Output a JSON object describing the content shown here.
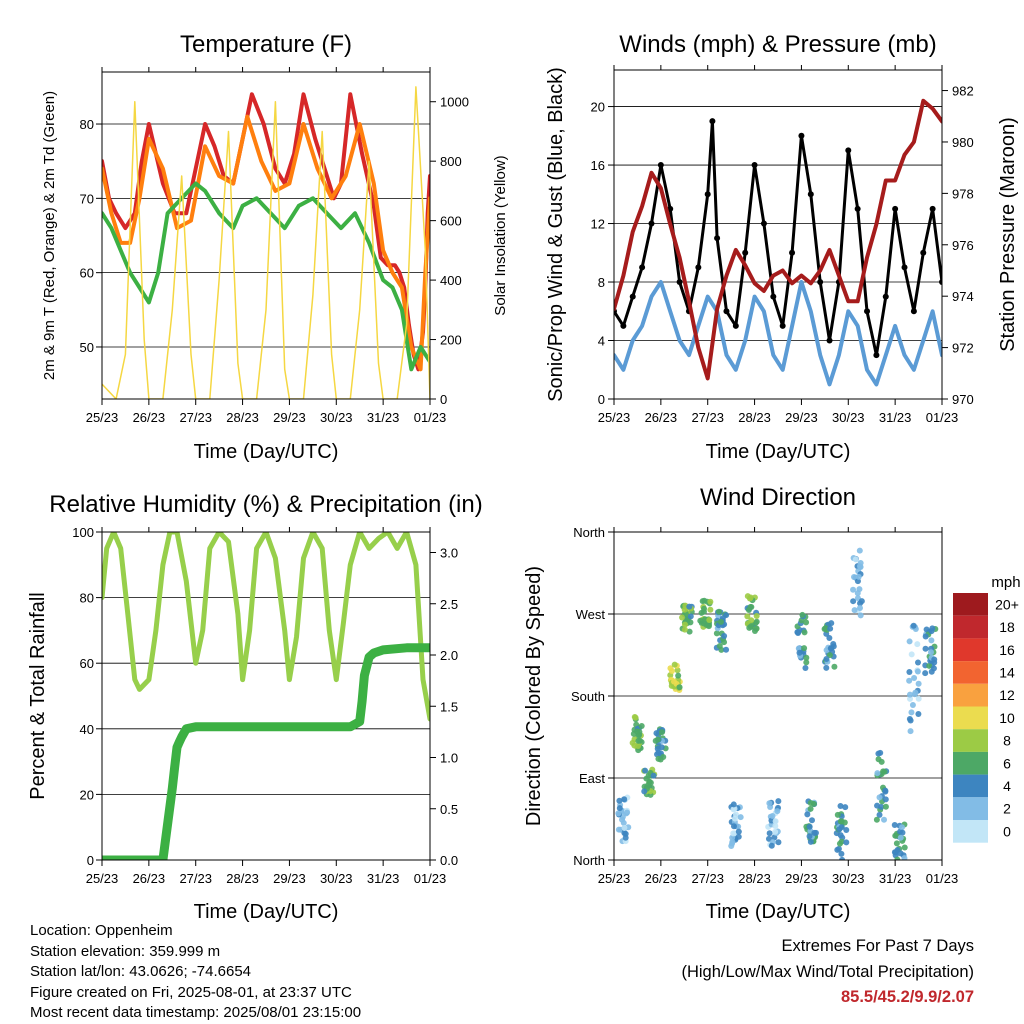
{
  "chart_data": [
    {
      "type": "line",
      "title": "Temperature (F)",
      "xlabel": "Time (Day/UTC)",
      "ylabel": "2m & 9m T (Red, Orange) & 2m Td (Green)",
      "y2label": "Solar Insolation (Yellow)",
      "x_ticks": [
        "25/23",
        "26/23",
        "27/23",
        "28/23",
        "29/23",
        "30/23",
        "31/23",
        "01/23"
      ],
      "xlim": [
        0,
        7
      ],
      "ylim": [
        43,
        87
      ],
      "y_ticks": [
        50,
        60,
        70,
        80
      ],
      "y2lim": [
        0,
        1100
      ],
      "y2_ticks": [
        0,
        200,
        400,
        600,
        800,
        1000
      ],
      "grid": true,
      "series": [
        {
          "color": "#d62728",
          "x": [
            0,
            0.15,
            0.3,
            0.5,
            0.7,
            0.85,
            1.0,
            1.15,
            1.3,
            1.55,
            1.8,
            2.0,
            2.2,
            2.4,
            2.6,
            2.8,
            3.0,
            3.2,
            3.45,
            3.7,
            3.9,
            4.1,
            4.3,
            4.55,
            4.8,
            4.95,
            5.1,
            5.3,
            5.55,
            5.8,
            5.95,
            6.1,
            6.25,
            6.35,
            6.45,
            6.55,
            6.65,
            6.75,
            6.85,
            6.9,
            6.95,
            7.0
          ],
          "values": [
            75,
            70,
            68,
            66,
            68,
            75,
            80,
            76,
            72,
            68,
            68,
            74,
            80,
            77,
            73,
            72,
            78,
            84,
            80,
            74,
            72,
            76,
            84,
            78,
            73,
            70,
            72,
            84,
            76,
            69,
            62,
            61,
            61,
            60,
            58,
            53,
            49,
            47,
            52,
            58,
            68,
            73
          ]
        },
        {
          "color": "#ff7f0e",
          "x": [
            0,
            0.2,
            0.4,
            0.6,
            0.8,
            1.0,
            1.3,
            1.6,
            1.9,
            2.2,
            2.5,
            2.8,
            3.1,
            3.4,
            3.7,
            4.0,
            4.3,
            4.6,
            4.9,
            5.2,
            5.5,
            5.8,
            6.0,
            6.2,
            6.4,
            6.6,
            6.8,
            6.9,
            7.0
          ],
          "values": [
            74,
            68,
            64,
            64,
            70,
            78,
            74,
            66,
            67,
            77,
            73,
            72,
            81,
            75,
            71,
            72,
            80,
            74,
            70,
            73,
            80,
            72,
            63,
            60,
            58,
            50,
            47,
            60,
            70
          ]
        },
        {
          "color": "#3cb043",
          "x": [
            0,
            0.2,
            0.4,
            0.6,
            0.8,
            1.0,
            1.2,
            1.4,
            1.7,
            2.0,
            2.2,
            2.5,
            2.8,
            3.0,
            3.3,
            3.6,
            3.9,
            4.2,
            4.5,
            4.8,
            5.1,
            5.4,
            5.7,
            6.0,
            6.2,
            6.4,
            6.6,
            6.8,
            7.0
          ],
          "values": [
            68,
            66,
            63,
            60,
            58,
            56,
            60,
            68,
            70,
            72,
            71,
            68,
            66,
            69,
            70,
            68,
            66,
            69,
            70,
            68,
            66,
            68,
            64,
            59,
            58,
            55,
            47,
            50,
            48
          ]
        },
        {
          "color": "#f5d742",
          "x": [
            0,
            0.3,
            0.5,
            0.7,
            0.9,
            1.0,
            1.3,
            1.5,
            1.7,
            1.9,
            2.0,
            2.3,
            2.5,
            2.7,
            2.9,
            3.0,
            3.3,
            3.5,
            3.7,
            3.9,
            4.0,
            4.3,
            4.5,
            4.7,
            4.9,
            5.0,
            5.3,
            5.5,
            5.7,
            5.9,
            6.0,
            6.3,
            6.5,
            6.7,
            6.9,
            7.0
          ],
          "values": [
            50,
            0,
            150,
            1000,
            200,
            0,
            0,
            300,
            750,
            150,
            0,
            0,
            400,
            900,
            120,
            0,
            0,
            300,
            1000,
            100,
            0,
            0,
            350,
            900,
            150,
            0,
            0,
            300,
            800,
            120,
            0,
            0,
            250,
            1050,
            500,
            0
          ],
          "axis": "y2"
        }
      ]
    },
    {
      "type": "line",
      "title": "Winds (mph) & Pressure (mb)",
      "xlabel": "Time (Day/UTC)",
      "ylabel": "Sonic/Prop Wind & Gust (Blue, Black)",
      "y2label": "Station Pressure (Maroon)",
      "x_ticks": [
        "25/23",
        "26/23",
        "27/23",
        "28/23",
        "29/23",
        "30/23",
        "31/23",
        "01/23"
      ],
      "xlim": [
        0,
        7
      ],
      "ylim": [
        0,
        22.5
      ],
      "y_ticks": [
        0,
        4,
        8,
        12,
        16,
        20
      ],
      "y2lim": [
        970,
        982.8
      ],
      "y2_ticks": [
        970,
        972,
        974,
        976,
        978,
        980,
        982
      ],
      "grid": true,
      "series": [
        {
          "color": "#5b9bd5",
          "x": [
            0,
            0.2,
            0.4,
            0.6,
            0.8,
            1.0,
            1.2,
            1.4,
            1.6,
            1.8,
            2.0,
            2.2,
            2.4,
            2.6,
            2.8,
            3.0,
            3.2,
            3.4,
            3.6,
            3.8,
            4.0,
            4.2,
            4.4,
            4.6,
            4.8,
            5.0,
            5.2,
            5.4,
            5.6,
            5.8,
            6.0,
            6.2,
            6.4,
            6.6,
            6.8,
            7.0
          ],
          "values": [
            3,
            2,
            4,
            5,
            7,
            8,
            6,
            4,
            3,
            5,
            7,
            6,
            3,
            2,
            4,
            7,
            6,
            3,
            2,
            5,
            8,
            6,
            3,
            1,
            3,
            6,
            5,
            2,
            1,
            3,
            5,
            3,
            2,
            4,
            6,
            3
          ]
        },
        {
          "color": "#000000",
          "x": [
            0,
            0.2,
            0.4,
            0.6,
            0.8,
            1.0,
            1.2,
            1.4,
            1.6,
            1.8,
            2.0,
            2.1,
            2.2,
            2.4,
            2.6,
            2.8,
            3.0,
            3.2,
            3.4,
            3.6,
            3.8,
            4.0,
            4.2,
            4.4,
            4.6,
            4.8,
            5.0,
            5.2,
            5.4,
            5.6,
            5.8,
            6.0,
            6.2,
            6.4,
            6.6,
            6.8,
            7.0
          ],
          "values": [
            6,
            5,
            7,
            9,
            12,
            16,
            13,
            8,
            6,
            9,
            14,
            19,
            11,
            6,
            5,
            10,
            16,
            12,
            7,
            5,
            10,
            18,
            14,
            8,
            4,
            8,
            17,
            13,
            6,
            3,
            7,
            13,
            9,
            6,
            10,
            13,
            8
          ]
        },
        {
          "color": "#a61c1c",
          "x": [
            0,
            0.2,
            0.4,
            0.6,
            0.8,
            1.0,
            1.2,
            1.4,
            1.6,
            1.8,
            2.0,
            2.2,
            2.4,
            2.6,
            2.8,
            3.0,
            3.2,
            3.4,
            3.6,
            3.8,
            4.0,
            4.2,
            4.4,
            4.6,
            4.8,
            5.0,
            5.2,
            5.4,
            5.6,
            5.8,
            6.0,
            6.2,
            6.4,
            6.6,
            6.8,
            7.0
          ],
          "values": [
            973.5,
            974.8,
            976.5,
            977.5,
            978.8,
            978.2,
            976.8,
            975.5,
            973.8,
            972.0,
            970.8,
            973.5,
            974.8,
            975.8,
            975.2,
            974.5,
            974.2,
            974.8,
            975.0,
            974.5,
            974.8,
            974.5,
            975.0,
            975.8,
            974.8,
            973.8,
            973.8,
            975.5,
            976.8,
            978.5,
            978.5,
            979.5,
            980.0,
            981.6,
            981.3,
            980.8
          ],
          "axis": "y2"
        }
      ]
    },
    {
      "type": "line",
      "title": "Relative Humidity (%) & Precipitation (in)",
      "xlabel": "Time (Day/UTC)",
      "ylabel": "Percent & Total Rainfall",
      "x_ticks": [
        "25/23",
        "26/23",
        "27/23",
        "28/23",
        "29/23",
        "30/23",
        "31/23",
        "01/23"
      ],
      "xlim": [
        0,
        7
      ],
      "ylim": [
        0,
        100
      ],
      "y_ticks": [
        0,
        20,
        40,
        60,
        80,
        100
      ],
      "y2lim": [
        0,
        3.2
      ],
      "y2_ticks": [
        0.0,
        0.5,
        1.0,
        1.5,
        2.0,
        2.5,
        3.0
      ],
      "grid": true,
      "series": [
        {
          "color": "#97cf4b",
          "x": [
            0,
            0.1,
            0.25,
            0.4,
            0.55,
            0.7,
            0.8,
            1.0,
            1.15,
            1.3,
            1.45,
            1.6,
            1.8,
            2.0,
            2.15,
            2.3,
            2.5,
            2.7,
            2.9,
            3.0,
            3.15,
            3.3,
            3.5,
            3.7,
            3.9,
            4.0,
            4.15,
            4.3,
            4.5,
            4.7,
            4.85,
            5.0,
            5.15,
            5.3,
            5.5,
            5.7,
            5.9,
            6.1,
            6.3,
            6.5,
            6.7,
            6.85,
            7.0
          ],
          "values": [
            80,
            95,
            100,
            95,
            75,
            55,
            52,
            55,
            70,
            90,
            100,
            100,
            85,
            60,
            70,
            95,
            100,
            97,
            75,
            55,
            70,
            95,
            100,
            92,
            70,
            55,
            68,
            92,
            100,
            95,
            70,
            55,
            72,
            90,
            100,
            95,
            98,
            100,
            95,
            100,
            90,
            55,
            43
          ]
        },
        {
          "color": "#3cb043",
          "x": [
            0,
            0.5,
            1.0,
            1.3,
            1.4,
            1.5,
            1.55,
            1.6,
            1.65,
            1.7,
            1.8,
            2.0,
            2.5,
            3.0,
            3.5,
            4.0,
            4.5,
            5.0,
            5.3,
            5.5,
            5.55,
            5.6,
            5.7,
            5.8,
            6.0,
            6.5,
            7.0
          ],
          "values": [
            0,
            0,
            0,
            0,
            0.35,
            0.7,
            0.9,
            1.1,
            1.15,
            1.2,
            1.28,
            1.3,
            1.3,
            1.3,
            1.3,
            1.3,
            1.3,
            1.3,
            1.3,
            1.35,
            1.55,
            1.8,
            1.98,
            2.02,
            2.05,
            2.07,
            2.07
          ],
          "axis": "y2"
        }
      ]
    },
    {
      "type": "scatter",
      "title": "Wind Direction",
      "xlabel": "Time (Day/UTC)",
      "ylabel": "Direction (Colored By Speed)",
      "x_ticks": [
        "25/23",
        "26/23",
        "27/23",
        "28/23",
        "29/23",
        "30/23",
        "31/23",
        "01/23"
      ],
      "xlim": [
        0,
        7
      ],
      "ylim": [
        0,
        360
      ],
      "y_ticks": [
        0,
        90,
        180,
        270,
        360
      ],
      "y_tick_labels": [
        "North",
        "East",
        "South",
        "West",
        "North"
      ],
      "grid": true,
      "legend": {
        "title": "mph",
        "labels": [
          "20+",
          "18",
          "16",
          "14",
          "12",
          "10",
          "8",
          "6",
          "4",
          "2",
          "0"
        ],
        "colors": [
          "#9e1a1e",
          "#c0282d",
          "#e0382c",
          "#f26430",
          "#f9a13f",
          "#ebdc4f",
          "#9ccb45",
          "#4da866",
          "#3d85c0",
          "#82bce6",
          "#c2e6f7"
        ]
      },
      "clusters": [
        {
          "x": 0.2,
          "y": 45,
          "spread_y": 25,
          "speed": 2
        },
        {
          "x": 0.5,
          "y": 140,
          "spread_y": 20,
          "speed": 6
        },
        {
          "x": 0.75,
          "y": 85,
          "spread_y": 15,
          "speed": 6
        },
        {
          "x": 1.0,
          "y": 125,
          "spread_y": 20,
          "speed": 4
        },
        {
          "x": 1.3,
          "y": 200,
          "spread_y": 15,
          "speed": 8
        },
        {
          "x": 1.55,
          "y": 265,
          "spread_y": 15,
          "speed": 6
        },
        {
          "x": 1.95,
          "y": 270,
          "spread_y": 15,
          "speed": 6
        },
        {
          "x": 2.3,
          "y": 250,
          "spread_y": 25,
          "speed": 4
        },
        {
          "x": 2.6,
          "y": 40,
          "spread_y": 25,
          "speed": 2
        },
        {
          "x": 2.95,
          "y": 270,
          "spread_y": 20,
          "speed": 6
        },
        {
          "x": 3.4,
          "y": 40,
          "spread_y": 25,
          "speed": 2
        },
        {
          "x": 4.0,
          "y": 240,
          "spread_y": 30,
          "speed": 4
        },
        {
          "x": 4.2,
          "y": 40,
          "spread_y": 25,
          "speed": 4
        },
        {
          "x": 4.6,
          "y": 235,
          "spread_y": 25,
          "speed": 4
        },
        {
          "x": 4.85,
          "y": 30,
          "spread_y": 30,
          "speed": 4
        },
        {
          "x": 5.2,
          "y": 300,
          "spread_y": 40,
          "speed": 2
        },
        {
          "x": 5.7,
          "y": 80,
          "spread_y": 40,
          "speed": 4
        },
        {
          "x": 6.1,
          "y": 20,
          "spread_y": 20,
          "speed": 4
        },
        {
          "x": 6.4,
          "y": 200,
          "spread_y": 60,
          "speed": 2
        },
        {
          "x": 6.75,
          "y": 230,
          "spread_y": 30,
          "speed": 4
        }
      ]
    }
  ],
  "footer": {
    "location": "Location: Oppenheim",
    "elevation": "Station elevation: 359.999 m",
    "latlon": "Station lat/lon: 43.0626; -74.6654",
    "created": "Figure created on Fri, 2025-08-01, at 23:37 UTC",
    "recent": "Most recent data timestamp: 2025/08/01 23:15:00",
    "extremes_title": "Extremes For Past 7 Days",
    "extremes_subtitle": "(High/Low/Max Wind/Total Precipitation)",
    "extremes_values": "85.5/45.2/9.9/2.07"
  }
}
